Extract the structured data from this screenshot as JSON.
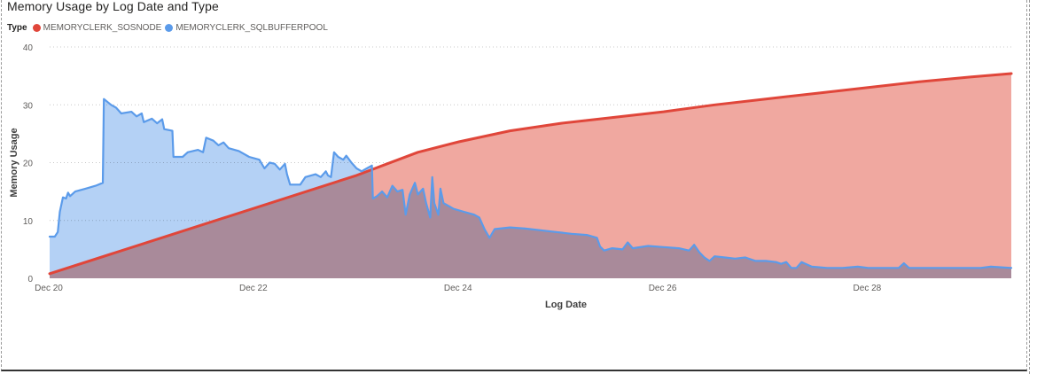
{
  "chart_data": {
    "type": "area",
    "title": "Memory Usage by Log Date and Type",
    "legend_title": "Type",
    "xlabel": "Log Date",
    "ylabel": "Memory Usage",
    "ylim": [
      0,
      40
    ],
    "yticks": [
      0,
      10,
      20,
      30,
      40
    ],
    "xlim": [
      20,
      29.4
    ],
    "xticks": [
      {
        "value": 20,
        "label": "Dec 20"
      },
      {
        "value": 22,
        "label": "Dec 22"
      },
      {
        "value": 24,
        "label": "Dec 24"
      },
      {
        "value": 26,
        "label": "Dec 26"
      },
      {
        "value": 28,
        "label": "Dec 28"
      }
    ],
    "grid": true,
    "series": [
      {
        "name": "MEMORYCLERK_SOSNODE",
        "color": "#e0463a",
        "fill": "#f0a8a0",
        "points": [
          [
            20.0,
            0.8
          ],
          [
            23.0,
            17.8
          ],
          [
            23.3,
            19.8
          ],
          [
            23.6,
            21.8
          ],
          [
            24.0,
            23.6
          ],
          [
            24.5,
            25.5
          ],
          [
            25.0,
            26.8
          ],
          [
            25.5,
            27.8
          ],
          [
            26.0,
            28.8
          ],
          [
            26.5,
            30.0
          ],
          [
            27.0,
            31.0
          ],
          [
            27.5,
            32.0
          ],
          [
            28.0,
            33.0
          ],
          [
            28.5,
            34.0
          ],
          [
            29.0,
            34.8
          ],
          [
            29.4,
            35.4
          ]
        ]
      },
      {
        "name": "MEMORYCLERK_SQLBUFFERPOOL",
        "color": "#5b9bea",
        "fill": "#b4d1f5",
        "points": [
          [
            20.0,
            7.2
          ],
          [
            20.05,
            7.2
          ],
          [
            20.08,
            8.0
          ],
          [
            20.1,
            11.5
          ],
          [
            20.13,
            14.0
          ],
          [
            20.16,
            13.8
          ],
          [
            20.18,
            14.8
          ],
          [
            20.2,
            14.2
          ],
          [
            20.25,
            15.0
          ],
          [
            20.35,
            15.5
          ],
          [
            20.45,
            16.0
          ],
          [
            20.52,
            16.5
          ],
          [
            20.53,
            31.0
          ],
          [
            20.6,
            30.0
          ],
          [
            20.65,
            29.5
          ],
          [
            20.7,
            28.5
          ],
          [
            20.8,
            28.8
          ],
          [
            20.85,
            28.0
          ],
          [
            20.9,
            28.5
          ],
          [
            20.92,
            27.0
          ],
          [
            21.0,
            27.6
          ],
          [
            21.05,
            26.8
          ],
          [
            21.1,
            27.5
          ],
          [
            21.12,
            25.8
          ],
          [
            21.2,
            25.5
          ],
          [
            21.21,
            21.0
          ],
          [
            21.3,
            21.0
          ],
          [
            21.35,
            21.8
          ],
          [
            21.45,
            22.2
          ],
          [
            21.5,
            21.8
          ],
          [
            21.53,
            24.3
          ],
          [
            21.6,
            23.8
          ],
          [
            21.65,
            23.0
          ],
          [
            21.7,
            23.5
          ],
          [
            21.75,
            22.5
          ],
          [
            21.85,
            22.0
          ],
          [
            21.95,
            21.0
          ],
          [
            22.05,
            20.5
          ],
          [
            22.1,
            19.0
          ],
          [
            22.15,
            20.0
          ],
          [
            22.2,
            19.8
          ],
          [
            22.25,
            18.8
          ],
          [
            22.3,
            19.8
          ],
          [
            22.32,
            18.0
          ],
          [
            22.35,
            16.2
          ],
          [
            22.45,
            16.2
          ],
          [
            22.5,
            17.5
          ],
          [
            22.6,
            18.0
          ],
          [
            22.65,
            17.5
          ],
          [
            22.7,
            18.5
          ],
          [
            22.72,
            17.8
          ],
          [
            22.75,
            17.5
          ],
          [
            22.78,
            21.8
          ],
          [
            22.82,
            21.0
          ],
          [
            22.87,
            20.5
          ],
          [
            22.9,
            21.2
          ],
          [
            22.95,
            20.0
          ],
          [
            23.0,
            19.0
          ],
          [
            23.05,
            18.5
          ],
          [
            23.1,
            19.0
          ],
          [
            23.15,
            19.5
          ],
          [
            23.16,
            13.8
          ],
          [
            23.2,
            14.2
          ],
          [
            23.25,
            15.0
          ],
          [
            23.3,
            14.0
          ],
          [
            23.35,
            16.0
          ],
          [
            23.4,
            15.0
          ],
          [
            23.45,
            15.3
          ],
          [
            23.48,
            11.0
          ],
          [
            23.52,
            14.5
          ],
          [
            23.57,
            16.5
          ],
          [
            23.6,
            14.5
          ],
          [
            23.65,
            15.5
          ],
          [
            23.68,
            13.0
          ],
          [
            23.72,
            10.5
          ],
          [
            23.74,
            17.5
          ],
          [
            23.76,
            13.0
          ],
          [
            23.8,
            11.0
          ],
          [
            23.82,
            15.5
          ],
          [
            23.85,
            13.0
          ],
          [
            23.95,
            12.0
          ],
          [
            24.05,
            11.5
          ],
          [
            24.15,
            11.0
          ],
          [
            24.2,
            10.5
          ],
          [
            24.25,
            8.5
          ],
          [
            24.3,
            7.0
          ],
          [
            24.35,
            8.5
          ],
          [
            24.5,
            8.8
          ],
          [
            24.65,
            8.6
          ],
          [
            24.8,
            8.3
          ],
          [
            24.95,
            8.0
          ],
          [
            25.1,
            7.7
          ],
          [
            25.25,
            7.5
          ],
          [
            25.35,
            7.0
          ],
          [
            25.38,
            5.5
          ],
          [
            25.42,
            4.8
          ],
          [
            25.5,
            5.2
          ],
          [
            25.6,
            5.0
          ],
          [
            25.65,
            6.2
          ],
          [
            25.7,
            5.2
          ],
          [
            25.85,
            5.6
          ],
          [
            26.0,
            5.4
          ],
          [
            26.15,
            5.2
          ],
          [
            26.25,
            4.8
          ],
          [
            26.3,
            5.8
          ],
          [
            26.35,
            4.5
          ],
          [
            26.4,
            3.6
          ],
          [
            26.45,
            3.0
          ],
          [
            26.5,
            3.8
          ],
          [
            26.6,
            3.6
          ],
          [
            26.7,
            3.4
          ],
          [
            26.8,
            3.6
          ],
          [
            26.9,
            3.0
          ],
          [
            27.0,
            3.0
          ],
          [
            27.1,
            2.8
          ],
          [
            27.15,
            2.5
          ],
          [
            27.2,
            2.8
          ],
          [
            27.25,
            1.8
          ],
          [
            27.3,
            1.8
          ],
          [
            27.35,
            2.8
          ],
          [
            27.45,
            2.0
          ],
          [
            27.6,
            1.8
          ],
          [
            27.75,
            1.8
          ],
          [
            27.9,
            2.0
          ],
          [
            28.0,
            1.8
          ],
          [
            28.2,
            1.8
          ],
          [
            28.3,
            1.8
          ],
          [
            28.35,
            2.6
          ],
          [
            28.4,
            1.8
          ],
          [
            28.6,
            1.8
          ],
          [
            28.8,
            1.8
          ],
          [
            29.0,
            1.8
          ],
          [
            29.1,
            1.8
          ],
          [
            29.2,
            2.0
          ],
          [
            29.3,
            1.9
          ],
          [
            29.4,
            1.8
          ]
        ]
      }
    ]
  }
}
